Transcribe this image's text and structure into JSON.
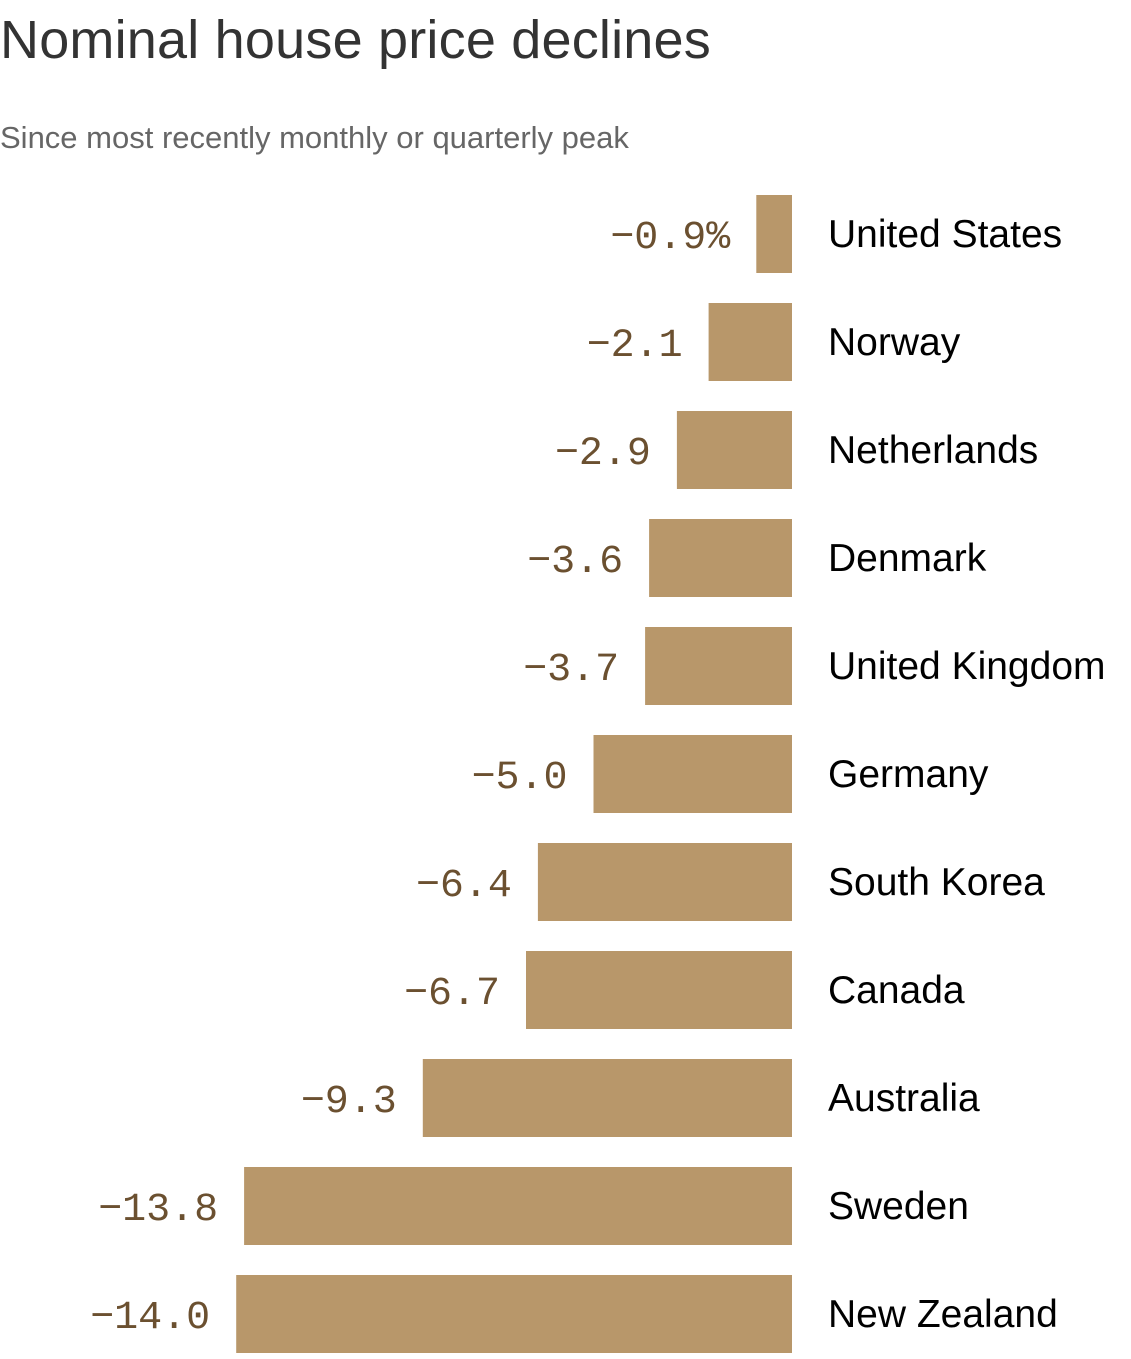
{
  "title": "Nominal house price declines",
  "subtitle": "Since most recently monthly or quarterly peak",
  "colors": {
    "bar": "#b8976a",
    "value_label": "#6b5030",
    "category_label": "#000000",
    "title": "#333333",
    "subtitle": "#666666"
  },
  "chart_data": {
    "type": "bar",
    "orientation": "horizontal",
    "title": "Nominal house price declines",
    "subtitle": "Since most recently monthly or quarterly peak",
    "categories": [
      "United States",
      "Norway",
      "Netherlands",
      "Denmark",
      "United Kingdom",
      "Germany",
      "South Korea",
      "Canada",
      "Australia",
      "Sweden",
      "New Zealand"
    ],
    "values": [
      -0.9,
      -2.1,
      -2.9,
      -3.6,
      -3.7,
      -5.0,
      -6.4,
      -6.7,
      -9.3,
      -13.8,
      -14.0
    ],
    "value_labels": [
      "−0.9%",
      "−2.1",
      "−2.9",
      "−3.6",
      "−3.7",
      "−5.0",
      "−6.4",
      "−6.7",
      "−9.3",
      "−13.8",
      "−14.0"
    ],
    "unit": "%",
    "xlim": [
      -14.0,
      0
    ],
    "xlabel": "",
    "ylabel": "",
    "grid": false,
    "legend": "none"
  }
}
